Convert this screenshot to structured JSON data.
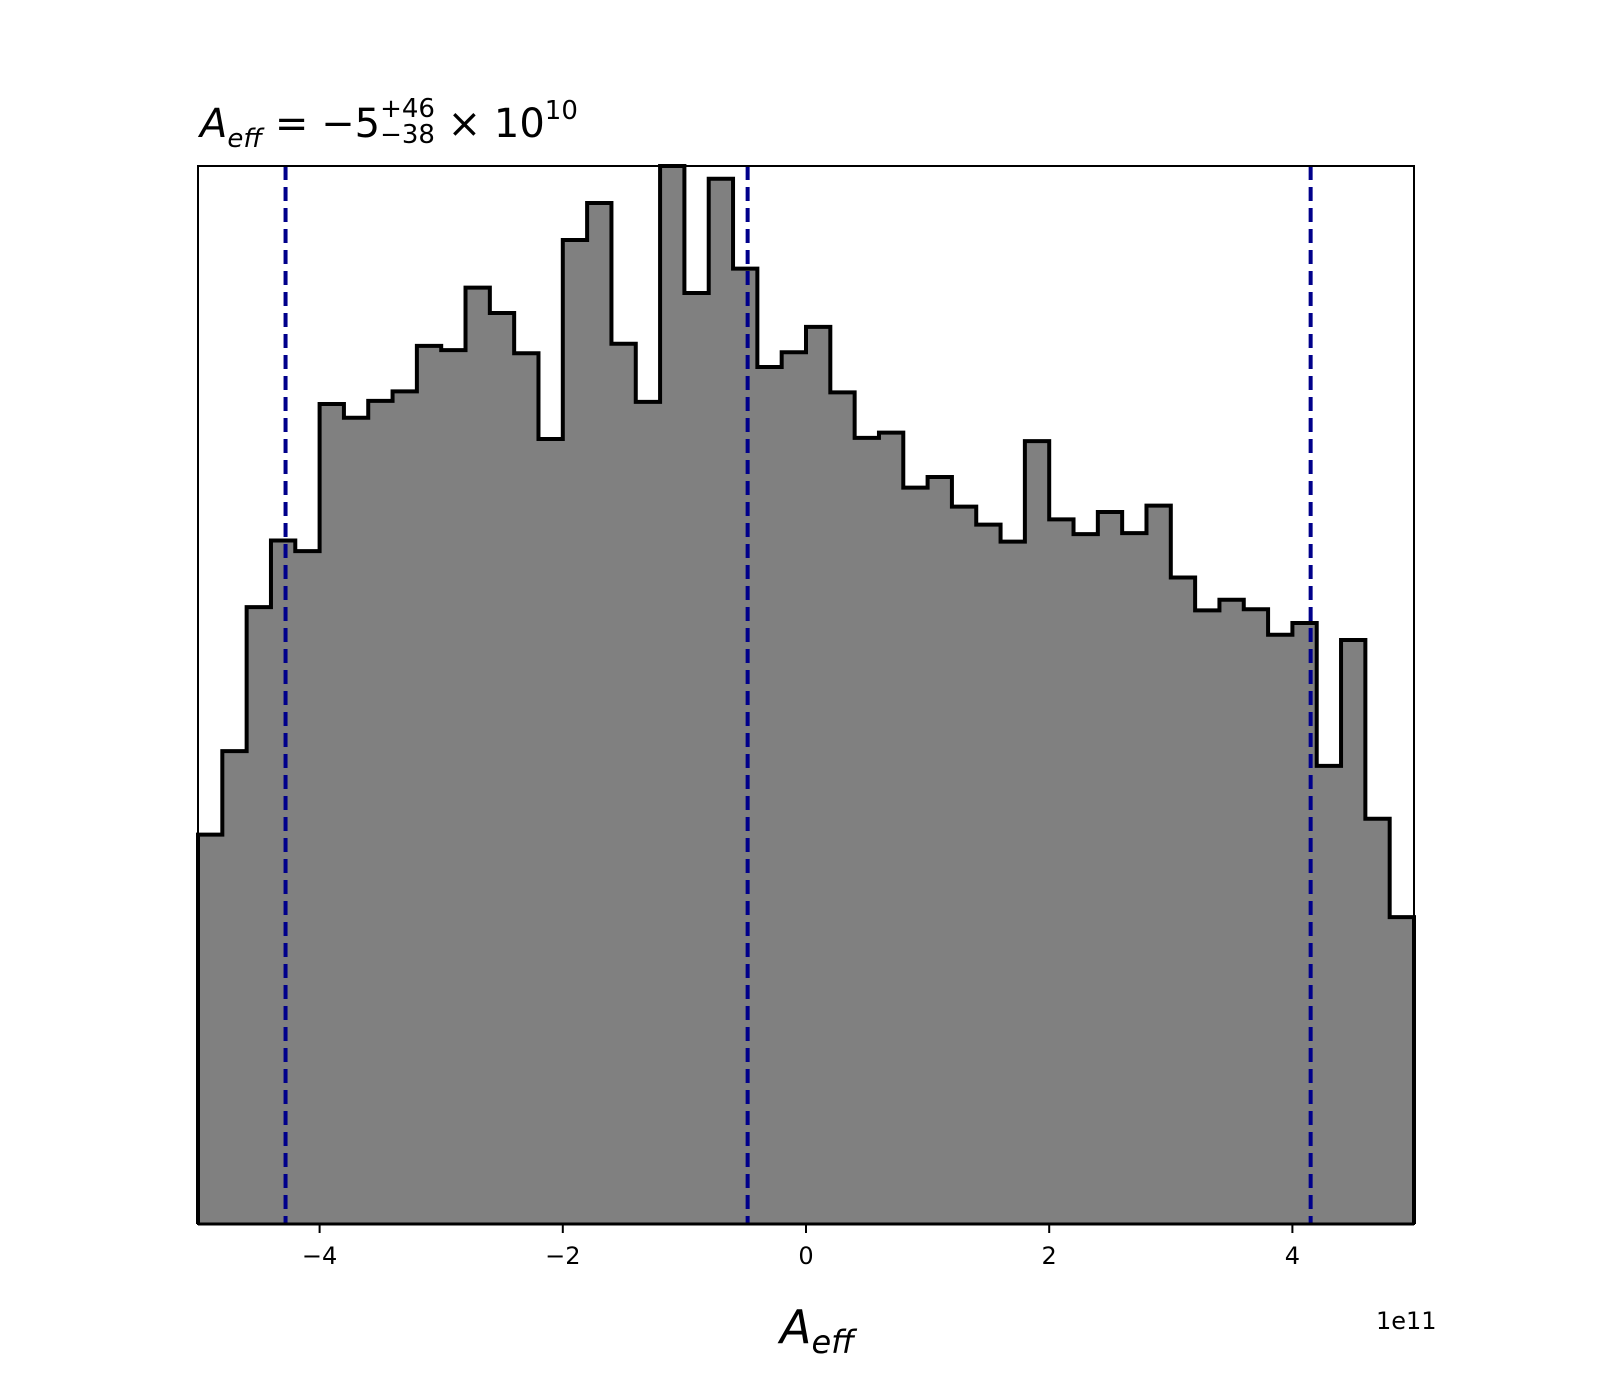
{
  "title": {
    "symbol": "A",
    "subscript": "eff",
    "equals": "= −5",
    "upper": "+46",
    "lower": "−38",
    "times": " × 10",
    "exponent": "10"
  },
  "xlabel": {
    "symbol": "A",
    "subscript": "eff"
  },
  "offset_text": "1e11",
  "colors": {
    "fill": "#808080",
    "edge": "#000000",
    "quantile_lines": "#00008b"
  },
  "chart_data": {
    "type": "bar",
    "histogram": true,
    "xlim": [
      -5.0,
      5.0
    ],
    "xunit_multiplier": "1e11",
    "x_ticks": [
      {
        "value": -4,
        "label": "−4"
      },
      {
        "value": -2,
        "label": "−2"
      },
      {
        "value": 0,
        "label": "0"
      },
      {
        "value": 2,
        "label": "2"
      },
      {
        "value": 4,
        "label": "4"
      }
    ],
    "y_axis_visible": false,
    "bin_edges": [
      -5.0,
      -4.8,
      -4.6,
      -4.4,
      -4.2,
      -4.0,
      -3.8,
      -3.6,
      -3.4,
      -3.2,
      -3.0,
      -2.8,
      -2.6,
      -2.4,
      -2.2,
      -2.0,
      -1.8,
      -1.6,
      -1.4,
      -1.2,
      -1.0,
      -0.8,
      -0.6,
      -0.4,
      -0.2,
      0.0,
      0.2,
      0.4,
      0.6,
      0.8,
      1.0,
      1.2,
      1.4,
      1.6,
      1.8,
      2.0,
      2.2,
      2.4,
      2.6,
      2.8,
      3.0,
      3.2,
      3.4,
      3.6,
      3.8,
      4.0,
      4.2,
      4.4,
      4.6,
      4.8,
      5.0
    ],
    "counts": [
      0.368,
      0.447,
      0.583,
      0.646,
      0.636,
      0.775,
      0.762,
      0.778,
      0.787,
      0.83,
      0.826,
      0.885,
      0.861,
      0.823,
      0.742,
      0.93,
      0.965,
      0.832,
      0.777,
      1.0,
      0.88,
      0.988,
      0.903,
      0.81,
      0.824,
      0.848,
      0.786,
      0.743,
      0.748,
      0.696,
      0.706,
      0.678,
      0.661,
      0.645,
      0.74,
      0.666,
      0.652,
      0.673,
      0.653,
      0.679,
      0.611,
      0.58,
      0.59,
      0.581,
      0.557,
      0.568,
      0.433,
      0.552,
      0.383,
      0.29
    ],
    "quantile_lines": [
      -4.28,
      -0.48,
      4.15
    ]
  }
}
